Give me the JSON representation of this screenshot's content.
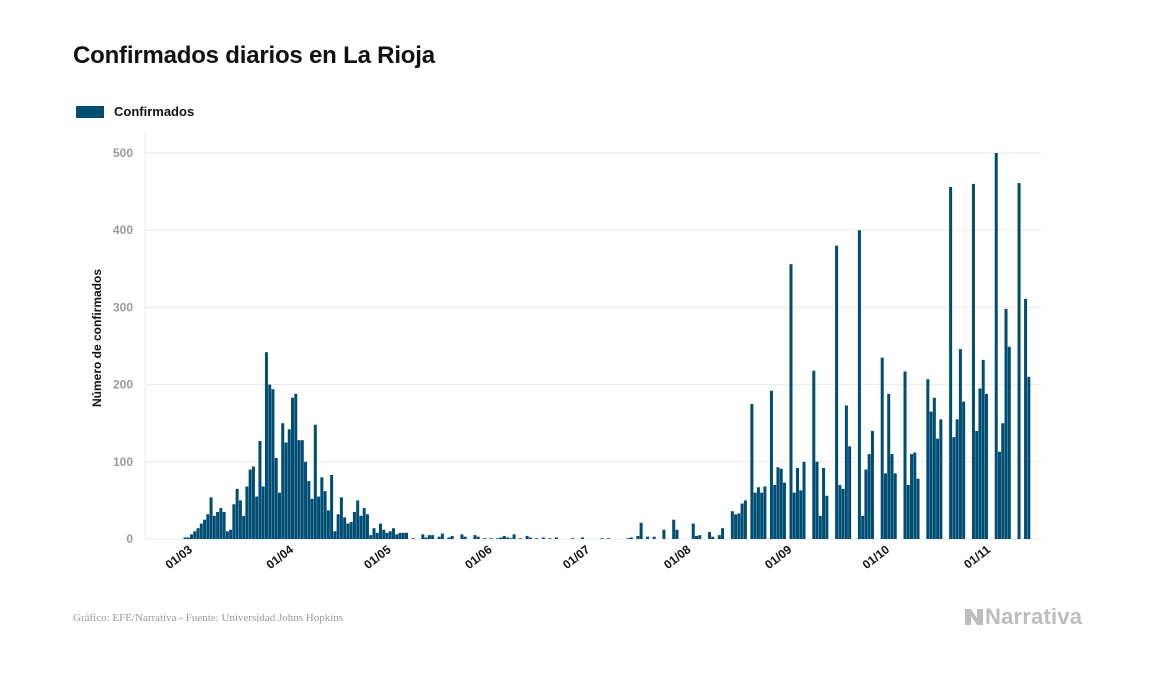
{
  "title": "Confirmados diarios en La Rioja",
  "legend": {
    "label": "Confirmados"
  },
  "colors": {
    "bar": "#004d73",
    "grid": "#e9e9e9",
    "tick_text": "#9a9a9a",
    "axis_text": "#111111"
  },
  "footer": {
    "source": "Gráfico: EFE/Narrativa - Fuente: Universidad Johns Hopkins"
  },
  "brand": {
    "name": "Narrativa",
    "icon": "narrativa-n-icon"
  },
  "chart_data": {
    "type": "bar",
    "ylabel": "Número de confirmados",
    "xlabel": "",
    "ylim": [
      0,
      500
    ],
    "yticks": [
      0,
      100,
      200,
      300,
      400,
      500
    ],
    "grid": true,
    "legend_position": "top-left",
    "xtick_labels": [
      "01/03",
      "01/04",
      "01/05",
      "01/06",
      "01/07",
      "01/08",
      "01/09",
      "01/10",
      "01/11"
    ],
    "xtick_dates": [
      "2020-03-01",
      "2020-04-01",
      "2020-05-01",
      "2020-06-01",
      "2020-07-01",
      "2020-08-01",
      "2020-09-01",
      "2020-10-01",
      "2020-11-01"
    ],
    "series": [
      {
        "name": "Confirmados",
        "points": [
          [
            "2020-03-01",
            2
          ],
          [
            "2020-03-02",
            2
          ],
          [
            "2020-03-03",
            6
          ],
          [
            "2020-03-04",
            10
          ],
          [
            "2020-03-05",
            14
          ],
          [
            "2020-03-06",
            20
          ],
          [
            "2020-03-07",
            25
          ],
          [
            "2020-03-08",
            32
          ],
          [
            "2020-03-09",
            54
          ],
          [
            "2020-03-10",
            30
          ],
          [
            "2020-03-11",
            35
          ],
          [
            "2020-03-12",
            40
          ],
          [
            "2020-03-13",
            35
          ],
          [
            "2020-03-14",
            10
          ],
          [
            "2020-03-15",
            12
          ],
          [
            "2020-03-16",
            45
          ],
          [
            "2020-03-17",
            65
          ],
          [
            "2020-03-18",
            50
          ],
          [
            "2020-03-19",
            30
          ],
          [
            "2020-03-20",
            68
          ],
          [
            "2020-03-21",
            90
          ],
          [
            "2020-03-22",
            94
          ],
          [
            "2020-03-23",
            55
          ],
          [
            "2020-03-24",
            127
          ],
          [
            "2020-03-25",
            68
          ],
          [
            "2020-03-26",
            242
          ],
          [
            "2020-03-27",
            200
          ],
          [
            "2020-03-28",
            194
          ],
          [
            "2020-03-29",
            105
          ],
          [
            "2020-03-30",
            60
          ],
          [
            "2020-03-31",
            150
          ],
          [
            "2020-04-01",
            125
          ],
          [
            "2020-04-02",
            142
          ],
          [
            "2020-04-03",
            183
          ],
          [
            "2020-04-04",
            188
          ],
          [
            "2020-04-05",
            128
          ],
          [
            "2020-04-06",
            128
          ],
          [
            "2020-04-07",
            100
          ],
          [
            "2020-04-08",
            75
          ],
          [
            "2020-04-09",
            52
          ],
          [
            "2020-04-10",
            148
          ],
          [
            "2020-04-11",
            55
          ],
          [
            "2020-04-12",
            80
          ],
          [
            "2020-04-13",
            62
          ],
          [
            "2020-04-14",
            37
          ],
          [
            "2020-04-15",
            83
          ],
          [
            "2020-04-16",
            10
          ],
          [
            "2020-04-17",
            32
          ],
          [
            "2020-04-18",
            54
          ],
          [
            "2020-04-19",
            28
          ],
          [
            "2020-04-20",
            20
          ],
          [
            "2020-04-21",
            22
          ],
          [
            "2020-04-22",
            35
          ],
          [
            "2020-04-23",
            50
          ],
          [
            "2020-04-24",
            30
          ],
          [
            "2020-04-25",
            40
          ],
          [
            "2020-04-26",
            32
          ],
          [
            "2020-04-27",
            5
          ],
          [
            "2020-04-28",
            14
          ],
          [
            "2020-04-29",
            8
          ],
          [
            "2020-04-30",
            20
          ],
          [
            "2020-05-01",
            12
          ],
          [
            "2020-05-02",
            8
          ],
          [
            "2020-05-03",
            10
          ],
          [
            "2020-05-04",
            14
          ],
          [
            "2020-05-05",
            6
          ],
          [
            "2020-05-06",
            8
          ],
          [
            "2020-05-07",
            8
          ],
          [
            "2020-05-08",
            8
          ],
          [
            "2020-05-10",
            1
          ],
          [
            "2020-05-13",
            6
          ],
          [
            "2020-05-14",
            2
          ],
          [
            "2020-05-15",
            5
          ],
          [
            "2020-05-16",
            5
          ],
          [
            "2020-05-18",
            3
          ],
          [
            "2020-05-19",
            7
          ],
          [
            "2020-05-21",
            2
          ],
          [
            "2020-05-22",
            4
          ],
          [
            "2020-05-25",
            6
          ],
          [
            "2020-05-26",
            3
          ],
          [
            "2020-05-29",
            5
          ],
          [
            "2020-05-30",
            3
          ],
          [
            "2020-06-01",
            1
          ],
          [
            "2020-06-03",
            1
          ],
          [
            "2020-06-05",
            1
          ],
          [
            "2020-06-06",
            2
          ],
          [
            "2020-06-07",
            4
          ],
          [
            "2020-06-08",
            2
          ],
          [
            "2020-06-09",
            1
          ],
          [
            "2020-06-10",
            6
          ],
          [
            "2020-06-12",
            1
          ],
          [
            "2020-06-14",
            4
          ],
          [
            "2020-06-15",
            2
          ],
          [
            "2020-06-17",
            1
          ],
          [
            "2020-06-19",
            2
          ],
          [
            "2020-06-21",
            1
          ],
          [
            "2020-06-23",
            2
          ],
          [
            "2020-06-28",
            1
          ],
          [
            "2020-07-01",
            2
          ],
          [
            "2020-07-07",
            1
          ],
          [
            "2020-07-09",
            1
          ],
          [
            "2020-07-15",
            1
          ],
          [
            "2020-07-16",
            2
          ],
          [
            "2020-07-18",
            4
          ],
          [
            "2020-07-19",
            21
          ],
          [
            "2020-07-21",
            3
          ],
          [
            "2020-07-23",
            3
          ],
          [
            "2020-07-26",
            12
          ],
          [
            "2020-07-29",
            25
          ],
          [
            "2020-07-30",
            12
          ],
          [
            "2020-08-04",
            20
          ],
          [
            "2020-08-05",
            4
          ],
          [
            "2020-08-06",
            5
          ],
          [
            "2020-08-09",
            9
          ],
          [
            "2020-08-10",
            3
          ],
          [
            "2020-08-12",
            5
          ],
          [
            "2020-08-13",
            14
          ],
          [
            "2020-08-16",
            36
          ],
          [
            "2020-08-17",
            32
          ],
          [
            "2020-08-18",
            33
          ],
          [
            "2020-08-19",
            46
          ],
          [
            "2020-08-20",
            50
          ],
          [
            "2020-08-22",
            175
          ],
          [
            "2020-08-23",
            60
          ],
          [
            "2020-08-24",
            67
          ],
          [
            "2020-08-25",
            60
          ],
          [
            "2020-08-26",
            68
          ],
          [
            "2020-08-28",
            192
          ],
          [
            "2020-08-29",
            70
          ],
          [
            "2020-08-30",
            93
          ],
          [
            "2020-08-31",
            91
          ],
          [
            "2020-09-01",
            73
          ],
          [
            "2020-09-03",
            356
          ],
          [
            "2020-09-04",
            60
          ],
          [
            "2020-09-05",
            92
          ],
          [
            "2020-09-06",
            63
          ],
          [
            "2020-09-07",
            100
          ],
          [
            "2020-09-10",
            218
          ],
          [
            "2020-09-11",
            100
          ],
          [
            "2020-09-12",
            30
          ],
          [
            "2020-09-13",
            92
          ],
          [
            "2020-09-14",
            56
          ],
          [
            "2020-09-17",
            380
          ],
          [
            "2020-09-18",
            70
          ],
          [
            "2020-09-19",
            65
          ],
          [
            "2020-09-20",
            173
          ],
          [
            "2020-09-21",
            120
          ],
          [
            "2020-09-24",
            400
          ],
          [
            "2020-09-25",
            30
          ],
          [
            "2020-09-26",
            90
          ],
          [
            "2020-09-27",
            110
          ],
          [
            "2020-09-28",
            140
          ],
          [
            "2020-10-01",
            235
          ],
          [
            "2020-10-02",
            85
          ],
          [
            "2020-10-03",
            188
          ],
          [
            "2020-10-04",
            110
          ],
          [
            "2020-10-05",
            85
          ],
          [
            "2020-10-08",
            217
          ],
          [
            "2020-10-09",
            70
          ],
          [
            "2020-10-10",
            110
          ],
          [
            "2020-10-11",
            112
          ],
          [
            "2020-10-12",
            78
          ],
          [
            "2020-10-15",
            207
          ],
          [
            "2020-10-16",
            165
          ],
          [
            "2020-10-17",
            183
          ],
          [
            "2020-10-18",
            130
          ],
          [
            "2020-10-19",
            155
          ],
          [
            "2020-10-22",
            456
          ],
          [
            "2020-10-23",
            132
          ],
          [
            "2020-10-24",
            155
          ],
          [
            "2020-10-25",
            246
          ],
          [
            "2020-10-26",
            178
          ],
          [
            "2020-10-29",
            460
          ],
          [
            "2020-10-30",
            140
          ],
          [
            "2020-10-31",
            195
          ],
          [
            "2020-11-01",
            232
          ],
          [
            "2020-11-02",
            188
          ],
          [
            "2020-11-05",
            500
          ],
          [
            "2020-11-06",
            113
          ],
          [
            "2020-11-07",
            150
          ],
          [
            "2020-11-08",
            298
          ],
          [
            "2020-11-09",
            249
          ],
          [
            "2020-11-12",
            461
          ],
          [
            "2020-11-14",
            311
          ],
          [
            "2020-11-15",
            210
          ]
        ]
      }
    ]
  }
}
